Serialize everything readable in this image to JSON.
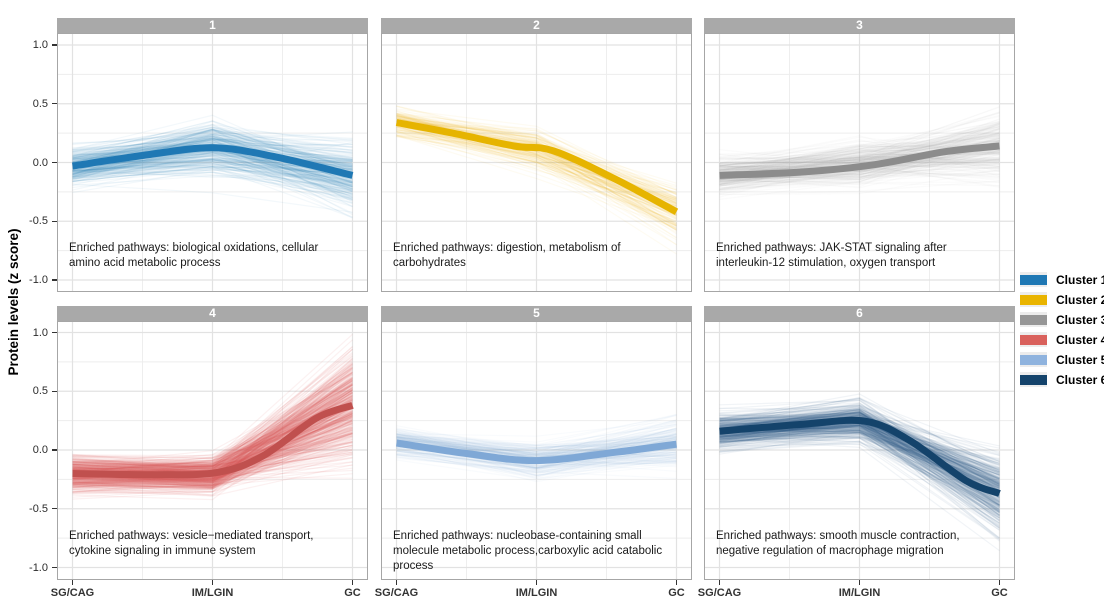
{
  "figure": {
    "ylabel": "Protein levels (z score)"
  },
  "axes": {
    "x_categories": [
      "SG/CAG",
      "IM/LGIN",
      "GC"
    ],
    "y_ticks": [
      {
        "label": "1.0",
        "value": 1
      },
      {
        "label": "0.5",
        "value": 0.5
      },
      {
        "label": "0.0",
        "value": 0
      },
      {
        "label": "-0.5",
        "value": -0.5
      },
      {
        "label": "-1.0",
        "value": -1
      }
    ]
  },
  "legend": {
    "items": [
      {
        "label": "Cluster 1",
        "color": "#1F78B4"
      },
      {
        "label": "Cluster 2",
        "color": "#E9B400"
      },
      {
        "label": "Cluster 3",
        "color": "#969696"
      },
      {
        "label": "Cluster 4",
        "color": "#D9615C"
      },
      {
        "label": "Cluster 5",
        "color": "#8FB3DE"
      },
      {
        "label": "Cluster 6",
        "color": "#14436B"
      }
    ]
  },
  "panels": [
    {
      "label": "1",
      "color": "#1F78B4",
      "trend_color": "#1F78B4",
      "annotation": "Enriched pathways: biological oxidations, cellular\namino acid metabolic process",
      "trend_points": [
        [
          0,
          -0.03
        ],
        [
          0.25,
          0.06
        ],
        [
          0.5,
          0.125
        ],
        [
          0.72,
          0.05
        ],
        [
          1,
          -0.11
        ]
      ],
      "anchors": [
        -0.03,
        0.125,
        -0.11
      ],
      "spread_base": 0.13,
      "spread": [
        0.1,
        0.17,
        0.24
      ],
      "n_lines": 260,
      "line_opacity": 0.055,
      "seed": 11
    },
    {
      "label": "2",
      "color": "#E9B400",
      "trend_color": "#E6B400",
      "annotation": "Enriched pathways: digestion, metabolism of\ncarbohydrates",
      "trend_points": [
        [
          0,
          0.34
        ],
        [
          0.2,
          0.25
        ],
        [
          0.42,
          0.14
        ],
        [
          0.56,
          0.1
        ],
        [
          0.78,
          -0.14
        ],
        [
          1,
          -0.42
        ]
      ],
      "anchors": [
        0.34,
        0.11,
        -0.42
      ],
      "spread_base": 0.08,
      "spread": [
        0.07,
        0.13,
        0.2
      ],
      "n_lines": 150,
      "line_opacity": 0.05,
      "seed": 22
    },
    {
      "label": "3",
      "color": "#9B9B9B",
      "trend_color": "#8C8C8C",
      "annotation": "Enriched pathways: JAK-STAT signaling after\ninterleukin-12 stimulation, oxygen transport",
      "trend_points": [
        [
          0,
          -0.11
        ],
        [
          0.3,
          -0.08
        ],
        [
          0.55,
          -0.02
        ],
        [
          0.8,
          0.09
        ],
        [
          1,
          0.14
        ]
      ],
      "anchors": [
        -0.11,
        -0.02,
        0.14
      ],
      "spread_base": 0.11,
      "spread": [
        0.1,
        0.14,
        0.26
      ],
      "n_lines": 260,
      "line_opacity": 0.04,
      "seed": 33
    },
    {
      "label": "4",
      "color": "#D9615C",
      "trend_color": "#C0504E",
      "annotation": "Enriched pathways: vesicle−mediated transport,\ncytokine signaling in immune system",
      "trend_points": [
        [
          0,
          -0.2
        ],
        [
          0.3,
          -0.21
        ],
        [
          0.52,
          -0.19
        ],
        [
          0.68,
          -0.05
        ],
        [
          0.87,
          0.27
        ],
        [
          1,
          0.38
        ]
      ],
      "anchors": [
        -0.2,
        -0.21,
        0.38
      ],
      "spread_base": 0.12,
      "spread": [
        0.09,
        0.09,
        0.42
      ],
      "n_lines": 400,
      "line_opacity": 0.085,
      "seed": 44
    },
    {
      "label": "5",
      "color": "#8FB3DE",
      "trend_color": "#7FA8D6",
      "annotation": "Enriched pathways: nucleobase-containing small\nmolecule metabolic process,carboxylic acid catabolic\nprocess",
      "trend_points": [
        [
          0,
          0.06
        ],
        [
          0.25,
          -0.03
        ],
        [
          0.5,
          -0.09
        ],
        [
          0.78,
          -0.02
        ],
        [
          1,
          0.05
        ]
      ],
      "anchors": [
        0.06,
        -0.09,
        0.05
      ],
      "spread_base": 0.1,
      "spread": [
        0.08,
        0.11,
        0.18
      ],
      "n_lines": 180,
      "line_opacity": 0.05,
      "seed": 55
    },
    {
      "label": "6",
      "color": "#2A5B84",
      "trend_color": "#14436B",
      "annotation": "Enriched pathways: smooth muscle contraction,\nnegative regulation of macrophage migration",
      "trend_points": [
        [
          0,
          0.16
        ],
        [
          0.3,
          0.22
        ],
        [
          0.52,
          0.245
        ],
        [
          0.68,
          0.08
        ],
        [
          0.88,
          -0.26
        ],
        [
          1,
          -0.37
        ]
      ],
      "anchors": [
        0.16,
        0.245,
        -0.37
      ],
      "spread_base": 0.11,
      "spread": [
        0.09,
        0.11,
        0.3
      ],
      "n_lines": 340,
      "line_opacity": 0.065,
      "seed": 66
    }
  ],
  "chart_data": {
    "type": "line",
    "title": "",
    "categories": [
      "SG/CAG",
      "IM/LGIN",
      "GC"
    ],
    "xlabel": "",
    "ylabel": "Protein levels (z score)",
    "ylim": [
      -1.1,
      1.1
    ],
    "grid": true,
    "legend_position": "right",
    "facets": [
      {
        "facet": "1",
        "cluster": "Cluster 1",
        "color": "#1F78B4",
        "mean_trend": [
          -0.03,
          0.12,
          -0.11
        ],
        "enriched_pathways": "biological oxidations, cellular amino acid metabolic process"
      },
      {
        "facet": "2",
        "cluster": "Cluster 2",
        "color": "#E9B400",
        "mean_trend": [
          0.34,
          0.11,
          -0.42
        ],
        "enriched_pathways": "digestion, metabolism of carbohydrates"
      },
      {
        "facet": "3",
        "cluster": "Cluster 3",
        "color": "#969696",
        "mean_trend": [
          -0.11,
          -0.02,
          0.14
        ],
        "enriched_pathways": "JAK-STAT signaling after interleukin-12 stimulation, oxygen transport"
      },
      {
        "facet": "4",
        "cluster": "Cluster 4",
        "color": "#D9615C",
        "mean_trend": [
          -0.2,
          -0.21,
          0.38
        ],
        "enriched_pathways": "vesicle−mediated transport, cytokine signaling in immune system"
      },
      {
        "facet": "5",
        "cluster": "Cluster 5",
        "color": "#8FB3DE",
        "mean_trend": [
          0.06,
          -0.09,
          0.05
        ],
        "enriched_pathways": "nucleobase-containing small molecule metabolic process,carboxylic acid catabolic process"
      },
      {
        "facet": "6",
        "cluster": "Cluster 6",
        "color": "#14436B",
        "mean_trend": [
          0.16,
          0.24,
          -0.37
        ],
        "enriched_pathways": "smooth muscle contraction, negative regulation of macrophage migration"
      }
    ]
  }
}
